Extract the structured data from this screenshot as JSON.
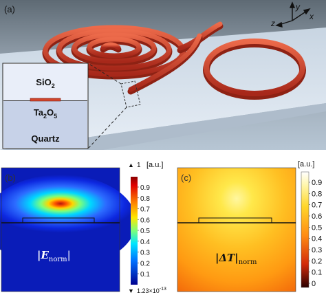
{
  "panel_a": {
    "label": "(a)",
    "axes": {
      "x": "x",
      "y": "y",
      "z": "z"
    },
    "inset": {
      "top": "SiO",
      "top_sub": "2",
      "mid": "Ta",
      "mid_sub1": "2",
      "mid_o": "O",
      "mid_sub2": "5",
      "bottom": "Quartz"
    }
  },
  "panel_b": {
    "label": "(b)",
    "field_label": "|E",
    "field_sub": "norm",
    "field_end": "|",
    "colorbar": {
      "top_marker": "▲",
      "top_value": "1",
      "unit": "[a.u.]",
      "ticks": [
        "0.9",
        "0.8",
        "0.7",
        "0.6",
        "0.5",
        "0.4",
        "0.3",
        "0.2",
        "0.1"
      ],
      "bottom_marker": "▼",
      "bottom_value": "1.23×10",
      "bottom_exp": "-13"
    }
  },
  "panel_c": {
    "label": "(c)",
    "field_label": "|ΔT|",
    "field_sub": "norm",
    "colorbar": {
      "unit": "[a.u.]",
      "ticks": [
        "0.9",
        "0.8",
        "0.7",
        "0.6",
        "0.5",
        "0.4",
        "0.3",
        "0.2",
        "0.1",
        "0"
      ]
    }
  },
  "colors": {
    "waveguide": "#d2452c",
    "slab": "#dbe6f2",
    "jet_core": "#c8201c",
    "hot_core": "#ffe24a"
  }
}
